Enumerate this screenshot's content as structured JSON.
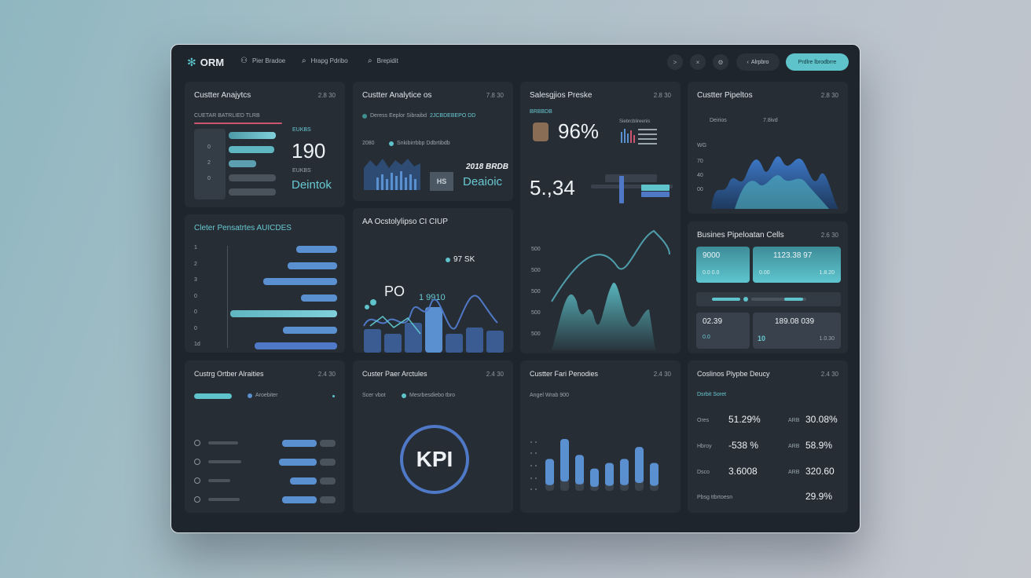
{
  "app": {
    "logo": "ORM"
  },
  "nav": [
    {
      "label": "Pier Bradoe",
      "icon": "user-icon"
    },
    {
      "label": "Hrapg Pdribo",
      "icon": "search-icon"
    },
    {
      "label": "Brepidit",
      "icon": "search-icon"
    }
  ],
  "top_actions": {
    "icon1": ">",
    "icon2": "×",
    "icon3": "⚙",
    "ghost": "Alrpbro",
    "primary": "Prdlre lbrodbrre"
  },
  "p1": {
    "title": "Custter Anajytcs",
    "meta": "2.8 30",
    "sub": "CUETAR BATRLIED TLRB",
    "rows": [
      "0",
      "2",
      "0"
    ],
    "l1": "EUKBS",
    "v1": "190",
    "l2": "EUKBS",
    "v2": "Deintok"
  },
  "p2": {
    "title": "Custter Analytice os",
    "meta": "7.8 30",
    "legend": "Deress Eeplor Sibraibd",
    "legend2": "2JCBDEBEPO DD",
    "v": "2080",
    "legend3": "Snkibirrbbp Ddbrtibdb",
    "hs": "HS",
    "big": "Deaioic",
    "year": "2018 BRDB"
  },
  "p3": {
    "title": "Salesgjios Preske",
    "meta": "2.8 30",
    "tag": "BRBBDB",
    "big1": "96%",
    "mini": "Siebrcblireenis",
    "big2": "5.,34",
    "yticks": [
      "500",
      "500",
      "500",
      "500",
      "500"
    ]
  },
  "p4": {
    "title": "Custter Pipeltos",
    "meta": "2.8 30",
    "l1": "Deirios",
    "l2": "7.8ivd",
    "yticks": [
      "WG",
      "70",
      "40",
      "00"
    ]
  },
  "p5": {
    "title": "Cleter Pensatrtes AUICDES",
    "rows": [
      "1",
      "2",
      "3",
      "0",
      "0",
      "0",
      "1d"
    ]
  },
  "p6": {
    "title": "AA Ocstolylipso CI CIUP",
    "pct": "97 SK",
    "po": "PO",
    "v": "1 9910"
  },
  "p7": {
    "title": "Busines Pipeloatan Cells",
    "meta": "2.6 30",
    "c1a": "9000",
    "c1b": "0.0 0.0",
    "c2a": "1123.38 97",
    "c2b": "0.00",
    "c2c": "1.8.20",
    "c3a": "02.39",
    "c3b": "0.0",
    "c4a": "189.08 039",
    "c4b": "10",
    "c4c": "1.0.30"
  },
  "p8": {
    "title": "Custrg Ortber Alraities",
    "meta": "2.4 30",
    "leg": "Aroebiter"
  },
  "p9": {
    "title": "Custer Paer Arctules",
    "meta": "2.4 30",
    "l1": "Scer vbot",
    "l2": "Mesrbesdiebo tbro",
    "kpi": "KPI"
  },
  "p10": {
    "title": "Custter Fari Penodies",
    "meta": "2.4 30",
    "sub": "Angel Wrab 900"
  },
  "p11": {
    "title": "Coslinos Plypbe Deucy",
    "meta": "2.4 30",
    "sub": "Dsrbit Soret",
    "rows": [
      {
        "l": "Ores",
        "v1": "51.29%",
        "l2": "ARB",
        "v2": "30.08%"
      },
      {
        "l": "Hbroy",
        "v1": "-538 %",
        "l2": "ARB",
        "v2": "58.9%"
      },
      {
        "l": "Dsco",
        "v1": "3.6008",
        "l2": "ARB",
        "v2": "320.60"
      },
      {
        "l": "Pbsg ttbrtoesn",
        "v1": "",
        "l2": "",
        "v2": "29.9%"
      }
    ]
  },
  "chart_data": [
    {
      "type": "bar",
      "title": "Cleter Pensatrtes AUICDES",
      "categories": [
        "1",
        "2",
        "3",
        "0",
        "0",
        "0",
        "1d"
      ],
      "values": [
        25,
        30,
        45,
        22,
        65,
        33,
        50
      ]
    },
    {
      "type": "bar",
      "title": "Custter Fari Penodies",
      "values": [
        40,
        65,
        45,
        28,
        35,
        40,
        55,
        35
      ]
    }
  ],
  "colors": {
    "accent": "#5ec3cb",
    "bar": "#5a8fd0",
    "panel": "#262d35",
    "bg": "#1f252c"
  }
}
